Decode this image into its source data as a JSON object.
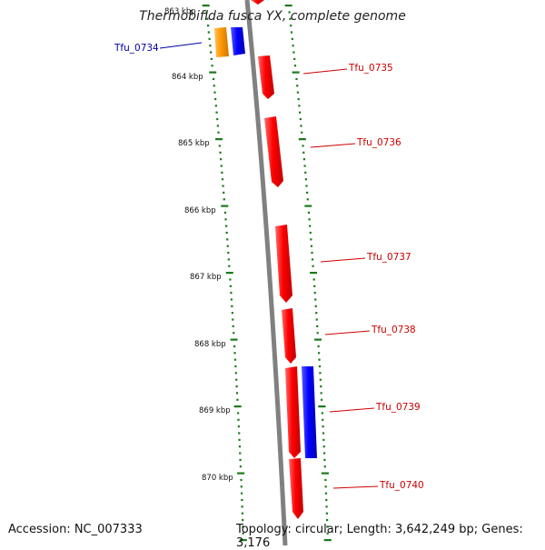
{
  "title": "Thermobifida fusca YX, complete genome",
  "accession_text": "Accession: NC_007333",
  "topology_text": "Topology: circular; Length: 3,642,249 bp; Genes: 3,176",
  "colors": {
    "backbone": "#808080",
    "tick_dots": "#1a7a1a",
    "forward_gene": "#ff0000",
    "reverse_gene": "#0000ff",
    "other_gene": "#ff9900",
    "forward_label": "#cc0000",
    "reverse_label": "#0000aa"
  },
  "scale": {
    "top_partial_label": "863 kbp",
    "labels": [
      "864 kbp",
      "865 kbp",
      "866 kbp",
      "867 kbp",
      "868 kbp",
      "869 kbp",
      "870 kbp"
    ]
  },
  "genes": [
    {
      "label": "Tfu_0734",
      "strand": "reverse",
      "type": "other"
    },
    {
      "label": "Tfu_0735",
      "strand": "forward"
    },
    {
      "label": "Tfu_0736",
      "strand": "forward"
    },
    {
      "label": "Tfu_0737",
      "strand": "forward"
    },
    {
      "label": "Tfu_0738",
      "strand": "forward"
    },
    {
      "label": "Tfu_0739",
      "strand": "forward"
    },
    {
      "label": "Tfu_0740",
      "strand": "forward"
    }
  ]
}
